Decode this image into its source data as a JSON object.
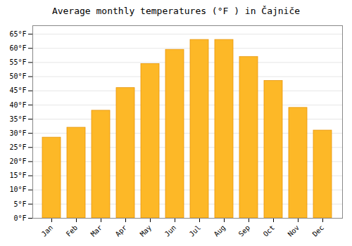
{
  "chart_data": {
    "type": "bar",
    "title": "Average monthly temperatures (°F ) in Čajniče",
    "categories": [
      "Jan",
      "Feb",
      "Mar",
      "Apr",
      "May",
      "Jun",
      "Jul",
      "Aug",
      "Sep",
      "Oct",
      "Nov",
      "Dec"
    ],
    "values": [
      28.5,
      32,
      38,
      46,
      54.5,
      59.5,
      63,
      63,
      57,
      48.5,
      39,
      31
    ],
    "color": "#FDB827",
    "ylim": [
      0,
      68
    ],
    "yticks": [
      {
        "value": 0,
        "label": "0°F"
      },
      {
        "value": 5,
        "label": "5°F"
      },
      {
        "value": 10,
        "label": "10°F"
      },
      {
        "value": 15,
        "label": "15°F"
      },
      {
        "value": 20,
        "label": "20°F"
      },
      {
        "value": 25,
        "label": "25°F"
      },
      {
        "value": 30,
        "label": "30°F"
      },
      {
        "value": 35,
        "label": "35°F"
      },
      {
        "value": 40,
        "label": "40°F"
      },
      {
        "value": 45,
        "label": "45°F"
      },
      {
        "value": 50,
        "label": "50°F"
      },
      {
        "value": 55,
        "label": "55°F"
      },
      {
        "value": 60,
        "label": "60°F"
      },
      {
        "value": 65,
        "label": "65°F"
      }
    ],
    "grid": true
  }
}
